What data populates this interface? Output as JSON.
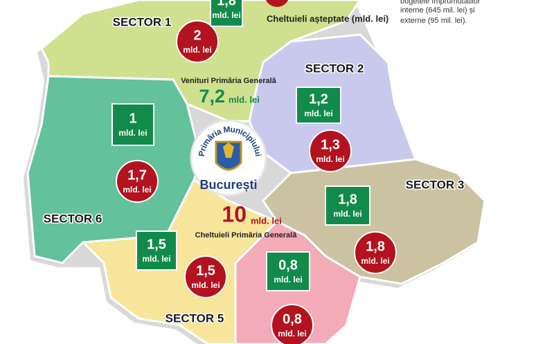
{
  "unit": "mld. lei",
  "legend": {
    "expense": "Cheltuieli așteptate (mld. lei)"
  },
  "note": [
    "bugetele împrumutatilor",
    "interne (645 mil. lei) și",
    "externe (95 mil. lei)."
  ],
  "revenue_total": {
    "label": "Venituri Primăria Generală",
    "value": "7,2"
  },
  "expense_total": {
    "value": "10",
    "label": "Cheltuieli Primăria Generală"
  },
  "logo": {
    "top": "Primăria Municipiului",
    "bottom": "București"
  },
  "sectors": [
    {
      "name": "SECTOR 1",
      "revenue": "1,8",
      "expense": "2"
    },
    {
      "name": "SECTOR 2",
      "revenue": "1,2",
      "expense": "1,3"
    },
    {
      "name": "SECTOR 3",
      "revenue": "1,8",
      "expense": "1,8"
    },
    {
      "revenue": "0,8",
      "expense": "0,8"
    },
    {
      "name": "SECTOR 5",
      "revenue": "1,5",
      "expense": "1,5"
    },
    {
      "name": "SECTOR 6",
      "revenue": "1",
      "expense": "1,7"
    }
  ]
}
